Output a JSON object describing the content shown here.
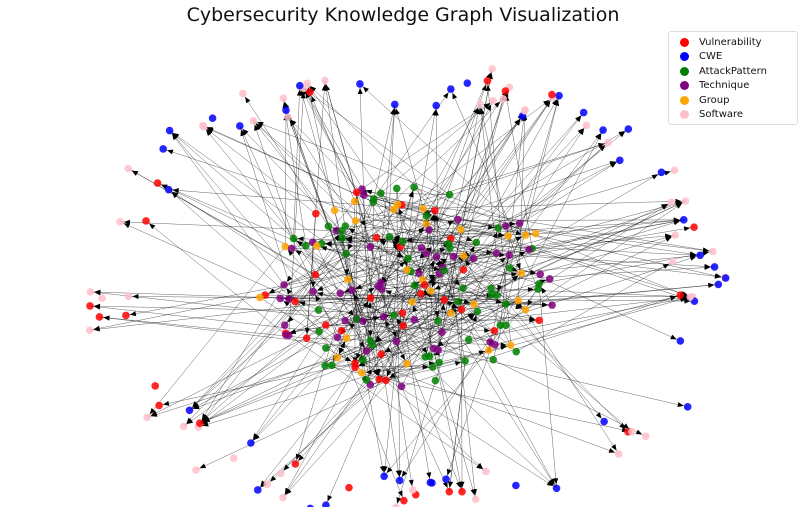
{
  "title": "Cybersecurity Knowledge Graph Visualization",
  "legend": [
    {
      "label": "Vulnerability",
      "color": "#ff0000"
    },
    {
      "label": "CWE",
      "color": "#0000ff"
    },
    {
      "label": "AttackPattern",
      "color": "#008000"
    },
    {
      "label": "Technique",
      "color": "#800080"
    },
    {
      "label": "Group",
      "color": "#ffa500"
    },
    {
      "label": "Software",
      "color": "#ffc0cb"
    }
  ],
  "edge_color": "#000000"
}
